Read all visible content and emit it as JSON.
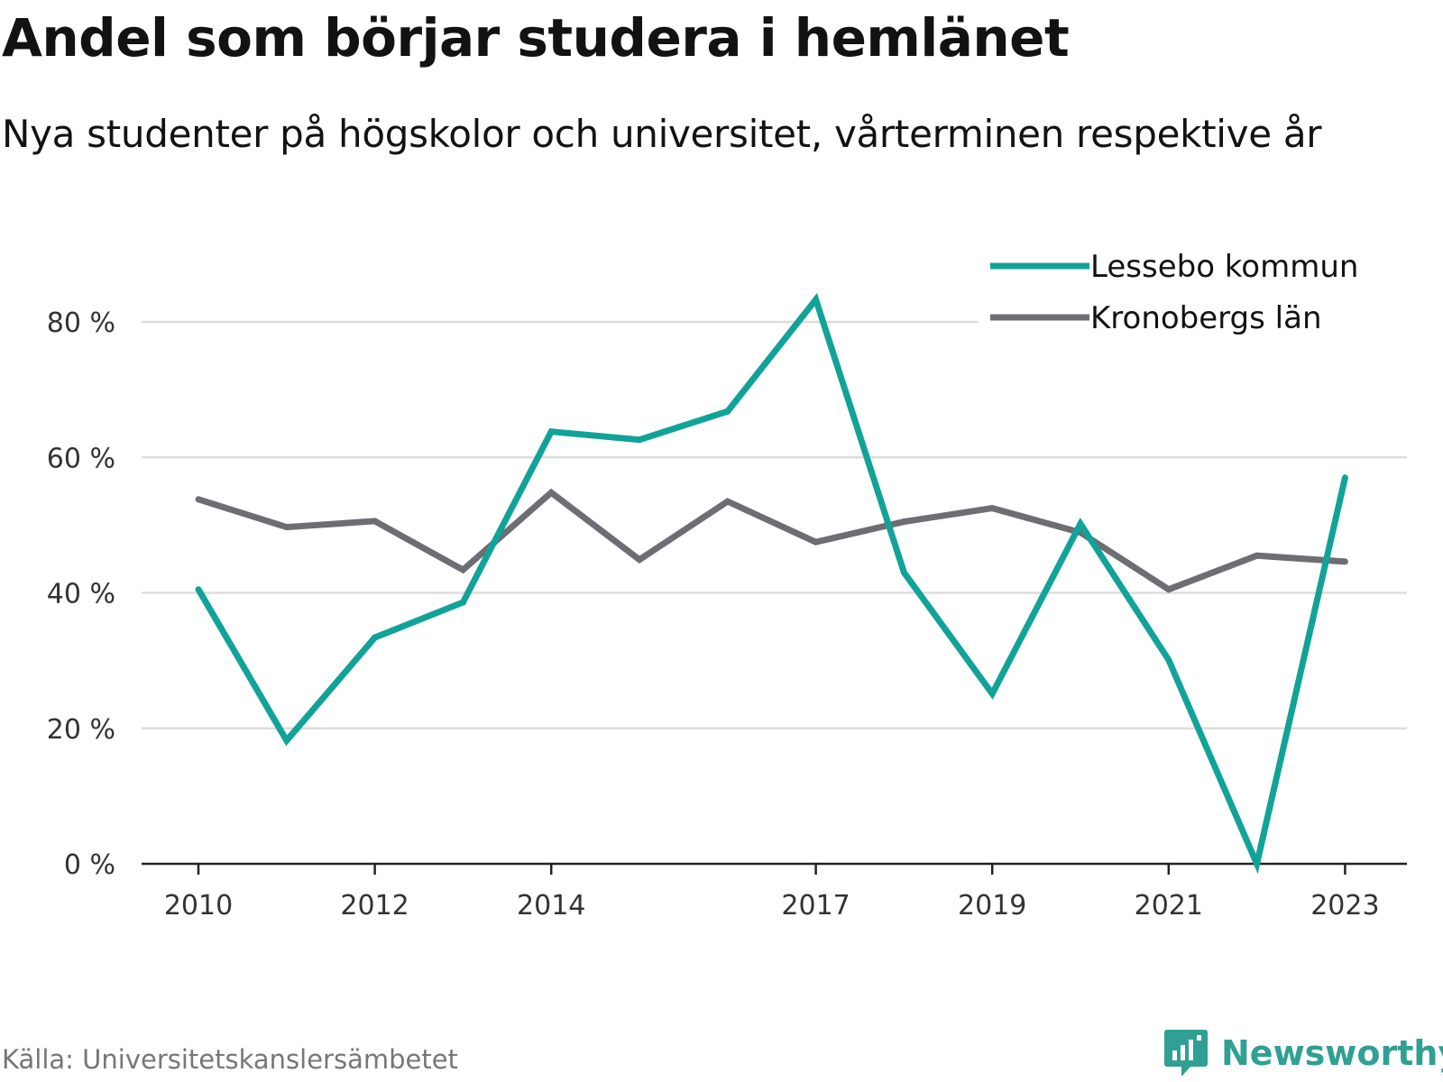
{
  "header": {
    "title": "Andel som börjar studera i hemlänet",
    "subtitle": "Nya studenter på högskolor och universitet, vårterminen respektive år"
  },
  "footer": {
    "source": "Källa: Universitetskanslersämbetet",
    "brand": "Newsworthy",
    "brand_icon": "bar-chart-speech-bubble-icon"
  },
  "colors": {
    "lessebo": "#12a398",
    "kronoberg": "#6e6d74",
    "grid": "#dddddd",
    "axis": "#222222",
    "brand": "#2fa093"
  },
  "chart_data": {
    "type": "line",
    "title": "Andel som börjar studera i hemlänet",
    "subtitle": "Nya studenter på högskolor och universitet, vårterminen respektive år",
    "x": [
      2010,
      2011,
      2012,
      2013,
      2014,
      2015,
      2016,
      2017,
      2018,
      2019,
      2020,
      2021,
      2022,
      2023
    ],
    "x_ticks": [
      2010,
      2012,
      2014,
      2017,
      2019,
      2021,
      2023
    ],
    "y_ticks": [
      0,
      20,
      40,
      60,
      80
    ],
    "y_tick_labels": [
      "0 %",
      "20 %",
      "40 %",
      "60 %",
      "80 %"
    ],
    "ylim": [
      0,
      80
    ],
    "grid": true,
    "legend_position": "top-right",
    "series": [
      {
        "name": "Lessebo kommun",
        "color": "#12a398",
        "values": [
          40.5,
          18.2,
          33.4,
          38.6,
          63.8,
          62.6,
          66.8,
          83.3,
          43.0,
          25.1,
          50.2,
          30.1,
          0.0,
          57.0
        ]
      },
      {
        "name": "Kronobergs län",
        "color": "#6e6d74",
        "values": [
          53.8,
          49.7,
          50.6,
          43.4,
          54.8,
          44.9,
          53.5,
          47.5,
          50.5,
          52.5,
          48.9,
          40.5,
          45.5,
          44.6
        ]
      }
    ]
  }
}
